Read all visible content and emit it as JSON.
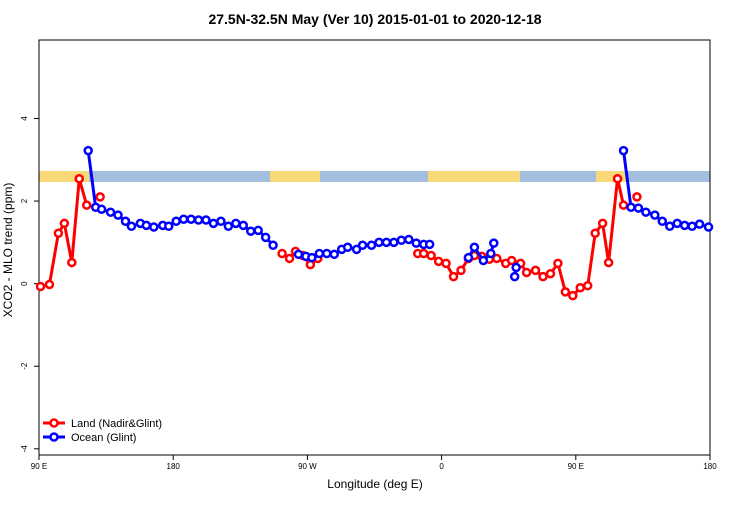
{
  "chart_data": {
    "type": "line",
    "title": "27.5N-32.5N May (Ver 10)   2015-01-01 to 2020-12-18",
    "x_label": "Longitude (deg E)",
    "y_label": "XCO2 - MLO trend (ppm)",
    "xlim": [
      90,
      540
    ],
    "ylim": [
      -4.15,
      5.9
    ],
    "xticks": [
      {
        "value": 90,
        "label": "90 E"
      },
      180,
      {
        "value": 270,
        "label": "90 W"
      },
      {
        "value": 360,
        "label": "0"
      },
      {
        "value": 450,
        "label": "90 E"
      },
      {
        "value": 540,
        "label": "180"
      }
    ],
    "yticks": [
      -4,
      -2,
      0,
      2,
      4
    ],
    "legend": "bottom-left",
    "series": [
      {
        "name": "Land (Nadir&Glint)",
        "color": "#ff0000",
        "x": [
          91,
          97,
          103,
          107,
          112,
          117,
          122,
          null,
          131,
          null,
          253,
          258,
          262,
          267,
          272,
          277,
          null,
          344,
          348,
          353,
          358,
          363,
          368,
          373,
          378,
          382,
          387,
          392,
          397,
          403,
          407,
          413,
          417,
          423,
          428,
          433,
          438,
          443,
          448,
          453,
          458,
          463,
          468,
          472,
          478,
          482,
          null,
          491
        ],
        "values": [
          -0.07,
          -0.02,
          1.22,
          1.46,
          0.51,
          2.54,
          1.9,
          null,
          2.1,
          null,
          0.73,
          0.61,
          0.78,
          0.68,
          0.46,
          0.61,
          null,
          0.73,
          0.73,
          0.68,
          0.54,
          0.49,
          0.17,
          0.32,
          0.61,
          0.68,
          0.66,
          0.59,
          0.61,
          0.49,
          0.56,
          0.49,
          0.27,
          0.32,
          0.17,
          0.24,
          0.49,
          -0.2,
          -0.29,
          -0.1,
          -0.05,
          1.22,
          1.46,
          0.51,
          2.54,
          1.9,
          null,
          2.1
        ]
      },
      {
        "name": "Ocean (Glint)",
        "color": "#0000ff",
        "x": [
          123,
          128,
          132,
          138,
          143,
          148,
          152,
          158,
          162,
          167,
          173,
          177,
          182,
          187,
          192,
          197,
          202,
          207,
          212,
          217,
          222,
          227,
          232,
          237,
          242,
          247,
          null,
          264,
          269,
          273,
          278,
          283,
          288,
          293,
          297,
          303,
          307,
          313,
          318,
          323,
          328,
          333,
          338,
          343,
          348,
          352,
          null,
          378,
          382,
          388,
          393,
          395,
          null,
          410,
          409,
          null,
          482,
          487,
          492,
          497,
          503,
          508,
          513,
          518,
          523,
          528,
          533,
          539
        ],
        "values": [
          3.22,
          1.85,
          1.8,
          1.73,
          1.66,
          1.51,
          1.39,
          1.46,
          1.41,
          1.37,
          1.41,
          1.39,
          1.51,
          1.56,
          1.56,
          1.54,
          1.54,
          1.46,
          1.51,
          1.39,
          1.46,
          1.41,
          1.27,
          1.29,
          1.12,
          0.93,
          null,
          0.71,
          0.66,
          0.63,
          0.73,
          0.73,
          0.71,
          0.83,
          0.88,
          0.83,
          0.93,
          0.93,
          1.0,
          1.0,
          1.0,
          1.05,
          1.07,
          0.98,
          0.95,
          0.95,
          null,
          0.63,
          0.88,
          0.56,
          0.73,
          0.98,
          null,
          0.39,
          0.17,
          null,
          3.22,
          1.85,
          1.83,
          1.73,
          1.66,
          1.51,
          1.39,
          1.46,
          1.41,
          1.39,
          1.44,
          1.37
        ]
      }
    ]
  }
}
